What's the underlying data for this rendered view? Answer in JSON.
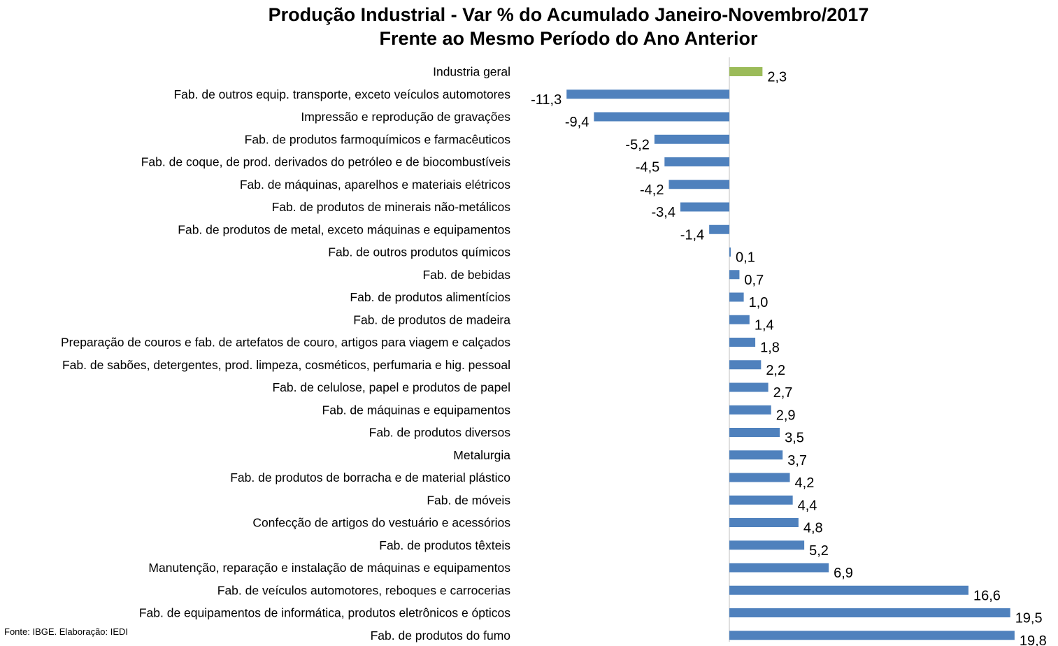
{
  "chart_data": {
    "type": "bar",
    "orientation": "horizontal",
    "title_line1": "Produção Industrial - Var % do Acumulado Janeiro-Novembro/2017",
    "title_line2": "Frente ao Mesmo Período do Ano Anterior",
    "categories": [
      "Industria geral",
      "Fab. de outros equip. transporte, exceto veículos automotores",
      "Impressão e reprodução de gravações",
      "Fab. de produtos farmoquímicos e farmacêuticos",
      "Fab. de coque, de prod. derivados do petróleo e de biocombustíveis",
      "Fab. de máquinas, aparelhos e materiais elétricos",
      "Fab. de produtos de minerais não-metálicos",
      "Fab. de produtos de metal, exceto máquinas e equipamentos",
      "Fab. de outros produtos químicos",
      "Fab. de bebidas",
      "Fab. de produtos alimentícios",
      "Fab. de produtos de madeira",
      "Preparação de couros e fab. de artefatos de couro, artigos para viagem e calçados",
      "Fab. de sabões, detergentes, prod. limpeza, cosméticos, perfumaria e hig. pessoal",
      "Fab. de celulose, papel e produtos de papel",
      "Fab. de máquinas e equipamentos",
      "Fab. de produtos diversos",
      "Metalurgia",
      "Fab. de produtos de borracha e de material plástico",
      "Fab. de móveis",
      "Confecção de artigos do vestuário e acessórios",
      "Fab. de produtos têxteis",
      "Manutenção, reparação e instalação de máquinas e equipamentos",
      "Fab. de veículos automotores, reboques e carrocerias",
      "Fab. de equipamentos de informática, produtos eletrônicos e ópticos",
      "Fab. de produtos do fumo"
    ],
    "values": [
      2.3,
      -11.3,
      -9.4,
      -5.2,
      -4.5,
      -4.2,
      -3.4,
      -1.4,
      0.1,
      0.7,
      1.0,
      1.4,
      1.8,
      2.2,
      2.7,
      2.9,
      3.5,
      3.7,
      4.2,
      4.4,
      4.8,
      5.2,
      6.9,
      16.6,
      19.5,
      19.8
    ],
    "value_labels": [
      "2,3",
      "-11,3",
      "-9,4",
      "-5,2",
      "-4,5",
      "-4,2",
      "-3,4",
      "-1,4",
      "0,1",
      "0,7",
      "1,0",
      "1,4",
      "1,8",
      "2,2",
      "2,7",
      "2,9",
      "3,5",
      "3,7",
      "4,2",
      "4,4",
      "4,8",
      "5,2",
      "6,9",
      "16,6",
      "19,5",
      "19,8"
    ],
    "highlight_index": 0,
    "colors": {
      "bar": "#4f81bd",
      "highlight": "#9bbb59",
      "axis": "#bfbfbf"
    },
    "xlim": [
      -11.3,
      19.8
    ],
    "grid": false,
    "legend": "none"
  },
  "source_note": "Fonte: IBGE. Elaboração: IEDI"
}
